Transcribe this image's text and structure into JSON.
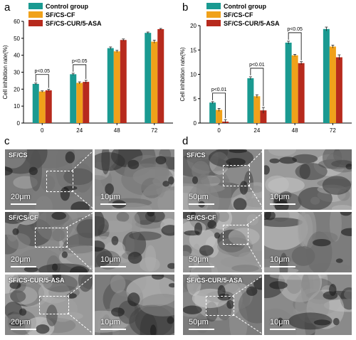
{
  "figure": {
    "panel_labels": [
      "a",
      "b",
      "c",
      "d"
    ],
    "legend": [
      "Control group",
      "SF/CS-CF",
      "SF/CS-CUR/5-ASA"
    ],
    "colors": [
      "#1a9a91",
      "#f0a11a",
      "#b72a1d"
    ]
  },
  "chart_data": [
    {
      "type": "bar",
      "panel": "a",
      "categories": [
        "0",
        "24",
        "48",
        "72"
      ],
      "series": [
        {
          "name": "Control group",
          "values": [
            23.1,
            28.8,
            44.2,
            53.2
          ],
          "errors": [
            0.5,
            0.6,
            0.7,
            0.5
          ]
        },
        {
          "name": "SF/CS-CF",
          "values": [
            18.6,
            23.7,
            42.3,
            48.0
          ],
          "errors": [
            0.4,
            0.6,
            0.6,
            0.9
          ]
        },
        {
          "name": "SF/CS-CUR/5-ASA",
          "values": [
            19.3,
            24.3,
            49.0,
            55.4
          ],
          "errors": [
            0.6,
            0.9,
            0.6,
            0.4
          ]
        }
      ],
      "ylabel": "Cell inhibition rate(%)",
      "ylim": [
        0,
        60
      ],
      "yticks": [
        0,
        10,
        20,
        30,
        40,
        50,
        60
      ],
      "legend_position": "top-left",
      "annotations": [
        {
          "text": "p<0.05",
          "category": "0",
          "from_series": 0,
          "to_series": 2
        },
        {
          "text": "p<0.05",
          "category": "24",
          "from_series": 0,
          "to_series": 2
        }
      ]
    },
    {
      "type": "bar",
      "panel": "b",
      "categories": [
        "0",
        "24",
        "48",
        "72"
      ],
      "series": [
        {
          "name": "Control group",
          "values": [
            4.2,
            9.2,
            16.5,
            19.3
          ],
          "errors": [
            0.2,
            0.3,
            0.3,
            0.4
          ]
        },
        {
          "name": "SF/CS-CF",
          "values": [
            2.7,
            5.5,
            13.9,
            15.7
          ],
          "errors": [
            0.3,
            0.3,
            0.2,
            0.3
          ]
        },
        {
          "name": "SF/CS-CUR/5-ASA",
          "values": [
            0.3,
            2.6,
            12.3,
            13.5
          ],
          "errors": [
            0.4,
            0.6,
            0.3,
            0.5
          ]
        }
      ],
      "ylabel": "Cell inhibition rate(%)",
      "ylim": [
        0,
        20
      ],
      "yticks": [
        0,
        5,
        10,
        15,
        20
      ],
      "legend_position": "top-left",
      "annotations": [
        {
          "text": "p<0.01",
          "category": "0",
          "from_series": 0,
          "to_series": 2
        },
        {
          "text": "p<0.01",
          "category": "24",
          "from_series": 0,
          "to_series": 2
        },
        {
          "text": "p<0.05",
          "category": "48",
          "from_series": 0,
          "to_series": 2
        }
      ]
    }
  ],
  "sem_panels": [
    {
      "panel": "c",
      "rows": [
        {
          "sample": "SF/CS",
          "scale_overview": "20μm",
          "scale_zoom": "10μm"
        },
        {
          "sample": "SF/CS-CF",
          "scale_overview": "20μm",
          "scale_zoom": "10μm"
        },
        {
          "sample": "SF/CS-CUR/5-ASA",
          "scale_overview": "20μm",
          "scale_zoom": "10μm"
        }
      ]
    },
    {
      "panel": "d",
      "rows": [
        {
          "sample": "SF/CS",
          "scale_overview": "50μm",
          "scale_zoom": "10μm"
        },
        {
          "sample": "SF/CS-CF",
          "scale_overview": "50μm",
          "scale_zoom": "10μm"
        },
        {
          "sample": "SF/CS-CUR/5-ASA",
          "scale_overview": "50μm",
          "scale_zoom": "10μm"
        }
      ]
    }
  ]
}
